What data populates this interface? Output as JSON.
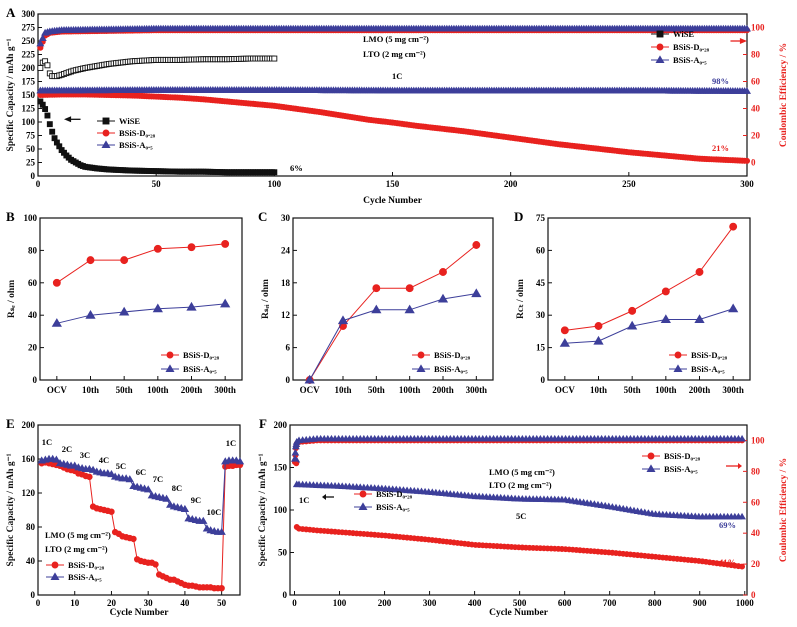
{
  "colors": {
    "wise": "#111111",
    "d028": "#e8221f",
    "a05": "#3d3f9a",
    "axis": "#111111",
    "ce_axis": "#e8221f"
  },
  "panels": {
    "A": {
      "letter": "A",
      "xlabel": "Cycle Number",
      "ylabel": "Specific Capacity / mAh g⁻¹",
      "y2label": "Coulombic Efficiency / %",
      "xlim": [
        0,
        300
      ],
      "ylim": [
        0,
        300
      ],
      "y2lim": [
        -10,
        110
      ],
      "xticks": [
        "0",
        "50",
        "100",
        "150",
        "200",
        "250",
        "300"
      ],
      "yticks": [
        "0",
        "25",
        "50",
        "75",
        "100",
        "125",
        "150",
        "175",
        "200",
        "225",
        "250",
        "275",
        "300"
      ],
      "y2ticks": [
        "0",
        "20",
        "40",
        "60",
        "80",
        "100"
      ],
      "text_lmo": "LMO (5 mg cm⁻²)",
      "text_lto": "LTO (2 mg cm⁻²)",
      "text_rate": "1C",
      "ann_98": "98%",
      "ann_21": "21%",
      "ann_6": "6%",
      "legend_left": [
        "WiSE",
        "BSiS-D₀.₂₈",
        "BSiS-A₀.₅"
      ],
      "legend_right": [
        "WiSE",
        "BSiS-D₀.₂₈",
        "BSiS-A₀.₅"
      ]
    },
    "B": {
      "letter": "B",
      "ylabel": "Rₛₑ / ohm",
      "ylim": [
        0,
        100
      ],
      "yticks": [
        "0",
        "20",
        "40",
        "60",
        "80",
        "100"
      ],
      "legend": [
        "BSiS-D₀.₂₈",
        "BSiS-A₀.₅"
      ]
    },
    "C": {
      "letter": "C",
      "ylabel": "Rₛₑᵢ / ohm",
      "ylim": [
        0,
        30
      ],
      "yticks": [
        "0",
        "6",
        "12",
        "18",
        "24",
        "30"
      ],
      "legend": [
        "BSiS-D₀.₂₈",
        "BSiS-A₀.₅"
      ]
    },
    "D": {
      "letter": "D",
      "ylabel": "Rᴄₜ / ohm",
      "ylim": [
        0,
        75
      ],
      "yticks": [
        "0",
        "15",
        "30",
        "45",
        "60",
        "75"
      ],
      "legend": [
        "BSiS-D₀.₂₈",
        "BSiS-A₀.₅"
      ]
    },
    "E": {
      "letter": "E",
      "xlabel": "Cycle Number",
      "ylabel": "Specific Capacity / mAh g⁻¹",
      "xlim": [
        0,
        55
      ],
      "ylim": [
        0,
        200
      ],
      "xticks": [
        "0",
        "10",
        "20",
        "30",
        "40",
        "50"
      ],
      "yticks": [
        "0",
        "40",
        "80",
        "120",
        "160",
        "200"
      ],
      "rates": [
        "1C",
        "2C",
        "3C",
        "4C",
        "5C",
        "6C",
        "7C",
        "8C",
        "9C",
        "10C",
        "1C"
      ],
      "text_lmo": "LMO (5 mg cm⁻²)",
      "text_lto": "LTO (2 mg cm⁻²)",
      "legend": [
        "BSiS-D₀.₂₈",
        "BSiS-A₀.₅"
      ]
    },
    "F": {
      "letter": "F",
      "xlabel": "Cycle Number",
      "ylabel": "Specific Capacity / mAh g⁻¹",
      "y2label": "Coulombic Efficiency / %",
      "xlim": [
        0,
        1000
      ],
      "ylim": [
        0,
        200
      ],
      "y2lim": [
        0,
        110
      ],
      "xticks": [
        "0",
        "100",
        "200",
        "300",
        "400",
        "500",
        "600",
        "700",
        "800",
        "900",
        "1000"
      ],
      "yticks": [
        "0",
        "50",
        "100",
        "150",
        "200"
      ],
      "y2ticks": [
        "0",
        "20",
        "40",
        "60",
        "80",
        "100"
      ],
      "text_lmo": "LMO (5 mg cm⁻²)",
      "text_lto": "LTO (2 mg cm⁻²)",
      "text_rate": "5C",
      "text_1c": "1C",
      "ann_69": "69%",
      "ann_41": "41%",
      "legend_left": [
        "BSiS-D₀.₂₈",
        "BSiS-A₀.₅"
      ],
      "legend_right": [
        "BSiS-D₀.₂₈",
        "BSiS-A₀.₅"
      ]
    }
  },
  "chart_data": [
    {
      "panel": "A",
      "type": "scatter",
      "series": [
        {
          "name": "WiSE",
          "kind": "capacity",
          "x": [
            1,
            2,
            3,
            4,
            5,
            6,
            7,
            8,
            9,
            10,
            12,
            14,
            16,
            18,
            20,
            25,
            30,
            40,
            50,
            60,
            70,
            80,
            90,
            100
          ],
          "y": [
            138,
            132,
            124,
            112,
            96,
            82,
            70,
            62,
            55,
            48,
            38,
            30,
            25,
            20,
            17,
            14,
            12,
            10,
            9,
            8,
            8,
            7,
            7,
            7
          ]
        },
        {
          "name": "BSiS-D0.28",
          "kind": "capacity",
          "x": [
            1,
            10,
            20,
            30,
            40,
            50,
            60,
            70,
            80,
            90,
            100,
            110,
            120,
            130,
            140,
            150,
            160,
            170,
            180,
            190,
            200,
            210,
            220,
            230,
            240,
            250,
            260,
            270,
            280,
            290,
            300
          ],
          "y": [
            150,
            151,
            151,
            150,
            149,
            147,
            145,
            142,
            138,
            134,
            130,
            124,
            118,
            111,
            104,
            99,
            93,
            88,
            83,
            77,
            71,
            65,
            59,
            54,
            49,
            44,
            40,
            36,
            32,
            30,
            28
          ]
        },
        {
          "name": "BSiS-A0.5",
          "kind": "capacity",
          "x": [
            1,
            50,
            100,
            150,
            200,
            250,
            300
          ],
          "y": [
            158,
            159,
            159,
            158,
            158,
            158,
            157
          ]
        },
        {
          "name": "WiSE",
          "kind": "ce",
          "x": [
            1,
            2,
            3,
            4,
            5,
            6,
            8,
            10,
            15,
            20,
            30,
            40,
            50,
            60,
            70,
            80,
            90,
            100
          ],
          "y": [
            70,
            74,
            75,
            72,
            66,
            64,
            64,
            65,
            68,
            70,
            73,
            75,
            76,
            76,
            76.5,
            76.5,
            77,
            77
          ]
        },
        {
          "name": "BSiS-D0.28",
          "kind": "ce",
          "x": [
            1,
            3,
            5,
            10,
            50,
            100,
            150,
            200,
            250,
            300
          ],
          "y": [
            85,
            94,
            96,
            97,
            98,
            98,
            98,
            98,
            98,
            98
          ]
        },
        {
          "name": "BSiS-A0.5",
          "kind": "ce",
          "x": [
            1,
            3,
            5,
            10,
            50,
            100,
            150,
            200,
            250,
            300
          ],
          "y": [
            88,
            96,
            97,
            98,
            99,
            99,
            99,
            99,
            99,
            99
          ]
        }
      ]
    },
    {
      "panel": "B",
      "type": "line",
      "categories": [
        "OCV",
        "10th",
        "50th",
        "100th",
        "200th",
        "300th"
      ],
      "series": [
        {
          "name": "BSiS-D0.28",
          "values": [
            60,
            74,
            74,
            81,
            82,
            84
          ]
        },
        {
          "name": "BSiS-A0.5",
          "values": [
            35,
            40,
            42,
            44,
            45,
            47
          ]
        }
      ]
    },
    {
      "panel": "C",
      "type": "line",
      "categories": [
        "OCV",
        "10th",
        "50th",
        "100th",
        "200th",
        "300th"
      ],
      "series": [
        {
          "name": "BSiS-D0.28",
          "values": [
            0,
            10,
            17,
            17,
            20,
            25
          ]
        },
        {
          "name": "BSiS-A0.5",
          "values": [
            0,
            11,
            13,
            13,
            15,
            16
          ]
        }
      ]
    },
    {
      "panel": "D",
      "type": "line",
      "categories": [
        "OCV",
        "10th",
        "50th",
        "100th",
        "200th",
        "300th"
      ],
      "series": [
        {
          "name": "BSiS-D0.28",
          "values": [
            23,
            25,
            32,
            41,
            50,
            71
          ]
        },
        {
          "name": "BSiS-A0.5",
          "values": [
            17,
            18,
            25,
            28,
            28,
            33
          ]
        }
      ]
    },
    {
      "panel": "E",
      "type": "scatter",
      "series": [
        {
          "name": "BSiS-D0.28",
          "x": [
            1,
            2,
            3,
            4,
            5,
            6,
            7,
            8,
            9,
            10,
            11,
            12,
            13,
            14,
            15,
            16,
            17,
            18,
            19,
            20,
            21,
            22,
            23,
            24,
            25,
            26,
            27,
            28,
            29,
            30,
            31,
            32,
            33,
            34,
            35,
            36,
            37,
            38,
            39,
            40,
            41,
            42,
            43,
            44,
            45,
            46,
            47,
            48,
            49,
            50,
            51,
            52,
            53,
            54,
            55
          ],
          "y": [
            155,
            156,
            155,
            154,
            153,
            152,
            150,
            148,
            147,
            146,
            143,
            142,
            140,
            139,
            104,
            102,
            101,
            100,
            99,
            98,
            74,
            72,
            69,
            68,
            67,
            66,
            42,
            40,
            39,
            38,
            38,
            36,
            24,
            22,
            20,
            18,
            18,
            16,
            14,
            12,
            11,
            11,
            10,
            9,
            9,
            9,
            9,
            8,
            8,
            8,
            151,
            152,
            152,
            153,
            153
          ]
        },
        {
          "name": "BSiS-A0.5",
          "x": [
            1,
            2,
            3,
            4,
            5,
            6,
            7,
            8,
            9,
            10,
            11,
            12,
            13,
            14,
            15,
            16,
            17,
            18,
            19,
            20,
            21,
            22,
            23,
            24,
            25,
            26,
            27,
            28,
            29,
            30,
            31,
            32,
            33,
            34,
            35,
            36,
            37,
            38,
            39,
            40,
            41,
            42,
            43,
            44,
            45,
            46,
            47,
            48,
            49,
            50,
            51,
            52,
            53,
            54,
            55
          ],
          "y": [
            158,
            159,
            160,
            160,
            159,
            155,
            154,
            153,
            152,
            152,
            150,
            149,
            148,
            148,
            147,
            145,
            144,
            143,
            143,
            142,
            139,
            138,
            137,
            137,
            136,
            128,
            127,
            126,
            125,
            124,
            117,
            116,
            115,
            114,
            113,
            106,
            104,
            103,
            102,
            101,
            90,
            89,
            88,
            87,
            87,
            78,
            76,
            75,
            74,
            74,
            157,
            158,
            158,
            158,
            157
          ]
        }
      ]
    },
    {
      "panel": "F",
      "type": "scatter",
      "series": [
        {
          "name": "BSiS-D0.28",
          "kind": "capacity",
          "x": [
            1,
            2,
            3,
            4,
            5,
            10,
            50,
            100,
            200,
            300,
            400,
            500,
            600,
            700,
            800,
            900,
            1000
          ],
          "y": [
            158,
            157,
            156,
            155,
            80,
            78,
            76,
            74,
            70,
            65,
            59,
            56,
            54,
            50,
            45,
            40,
            33
          ]
        },
        {
          "name": "BSiS-A0.5",
          "kind": "capacity",
          "x": [
            1,
            2,
            3,
            4,
            5,
            10,
            50,
            100,
            200,
            300,
            400,
            500,
            600,
            700,
            800,
            900,
            1000
          ],
          "y": [
            160,
            160,
            159,
            159,
            130,
            130,
            129,
            128,
            125,
            121,
            116,
            113,
            112,
            104,
            95,
            92,
            92
          ]
        },
        {
          "name": "BSiS-D0.28",
          "kind": "ce",
          "x": [
            1,
            3,
            5,
            10,
            50,
            100,
            200,
            300,
            400,
            500,
            600,
            700,
            800,
            900,
            1000
          ],
          "y": [
            86,
            95,
            98,
            99,
            100,
            100,
            100,
            100,
            100,
            100,
            100,
            100,
            100,
            100,
            100
          ]
        },
        {
          "name": "BSiS-A0.5",
          "kind": "ce",
          "x": [
            1,
            3,
            5,
            10,
            50,
            100,
            200,
            300,
            400,
            500,
            600,
            700,
            800,
            900,
            1000
          ],
          "y": [
            88,
            96,
            99,
            100,
            101,
            101,
            101,
            101,
            101,
            101,
            101,
            101,
            101,
            101,
            101
          ]
        }
      ]
    }
  ]
}
